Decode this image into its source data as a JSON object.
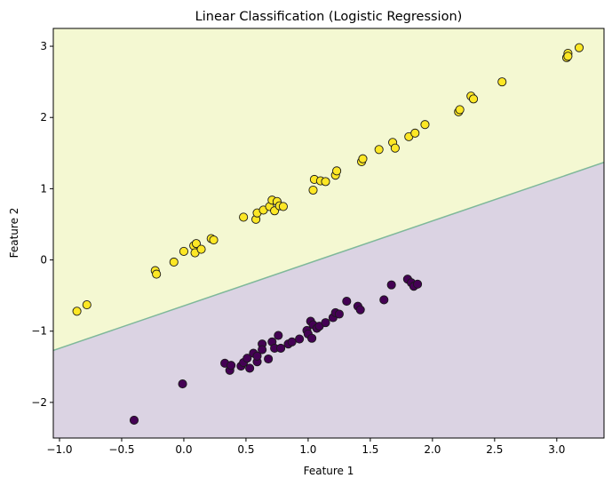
{
  "chart_data": {
    "type": "scatter",
    "title": "Linear Classification (Logistic Regression)",
    "xlabel": "Feature 1",
    "ylabel": "Feature 2",
    "xlim": [
      -1.05,
      3.38
    ],
    "ylim": [
      -2.5,
      3.25
    ],
    "x_ticks": [
      -1.0,
      -0.5,
      0.0,
      0.5,
      1.0,
      1.5,
      2.0,
      2.5,
      3.0
    ],
    "x_tick_labels": [
      "−1.0",
      "−0.5",
      "0.0",
      "0.5",
      "1.0",
      "1.5",
      "2.0",
      "2.5",
      "3.0"
    ],
    "y_ticks": [
      -2,
      -1,
      0,
      1,
      2,
      3
    ],
    "y_tick_labels": [
      "−2",
      "−1",
      "0",
      "1",
      "2",
      "3"
    ],
    "grid": false,
    "legend": "none",
    "decision_boundary": {
      "x": [
        -1.05,
        3.38
      ],
      "y": [
        -1.27,
        1.37
      ]
    },
    "regions": {
      "above_color": "#f4f8d2",
      "below_color": "#dbd3e3",
      "boundary_color": "#7fb89a"
    },
    "series": [
      {
        "color": "#440154",
        "points": [
          [
            -0.4,
            -2.25
          ],
          [
            -0.01,
            -1.74
          ],
          [
            0.33,
            -1.45
          ],
          [
            0.37,
            -1.55
          ],
          [
            0.38,
            -1.48
          ],
          [
            0.46,
            -1.49
          ],
          [
            0.48,
            -1.44
          ],
          [
            0.51,
            -1.38
          ],
          [
            0.53,
            -1.52
          ],
          [
            0.56,
            -1.31
          ],
          [
            0.59,
            -1.43
          ],
          [
            0.59,
            -1.35
          ],
          [
            0.63,
            -1.18
          ],
          [
            0.63,
            -1.26
          ],
          [
            0.68,
            -1.39
          ],
          [
            0.71,
            -1.15
          ],
          [
            0.73,
            -1.24
          ],
          [
            0.76,
            -1.06
          ],
          [
            0.78,
            -1.24
          ],
          [
            0.84,
            -1.18
          ],
          [
            0.87,
            -1.15
          ],
          [
            0.93,
            -1.11
          ],
          [
            0.99,
            -0.99
          ],
          [
            1.0,
            -1.04
          ],
          [
            1.02,
            -0.86
          ],
          [
            1.03,
            -1.1
          ],
          [
            1.04,
            -0.91
          ],
          [
            1.07,
            -0.96
          ],
          [
            1.09,
            -0.93
          ],
          [
            1.14,
            -0.88
          ],
          [
            1.2,
            -0.81
          ],
          [
            1.22,
            -0.74
          ],
          [
            1.25,
            -0.76
          ],
          [
            1.31,
            -0.58
          ],
          [
            1.4,
            -0.65
          ],
          [
            1.42,
            -0.7
          ],
          [
            1.61,
            -0.56
          ],
          [
            1.67,
            -0.35
          ],
          [
            1.8,
            -0.27
          ],
          [
            1.83,
            -0.32
          ],
          [
            1.85,
            -0.37
          ],
          [
            1.88,
            -0.34
          ]
        ]
      },
      {
        "color": "#fde725",
        "points": [
          [
            -0.86,
            -0.72
          ],
          [
            -0.78,
            -0.63
          ],
          [
            -0.23,
            -0.15
          ],
          [
            -0.22,
            -0.2
          ],
          [
            -0.08,
            -0.03
          ],
          [
            0.0,
            0.12
          ],
          [
            0.08,
            0.2
          ],
          [
            0.09,
            0.1
          ],
          [
            0.1,
            0.23
          ],
          [
            0.14,
            0.15
          ],
          [
            0.22,
            0.3
          ],
          [
            0.24,
            0.28
          ],
          [
            0.48,
            0.6
          ],
          [
            0.58,
            0.57
          ],
          [
            0.59,
            0.66
          ],
          [
            0.64,
            0.7
          ],
          [
            0.69,
            0.75
          ],
          [
            0.71,
            0.84
          ],
          [
            0.73,
            0.69
          ],
          [
            0.75,
            0.82
          ],
          [
            0.77,
            0.76
          ],
          [
            0.8,
            0.75
          ],
          [
            1.04,
            0.98
          ],
          [
            1.05,
            1.13
          ],
          [
            1.1,
            1.11
          ],
          [
            1.14,
            1.1
          ],
          [
            1.22,
            1.19
          ],
          [
            1.23,
            1.25
          ],
          [
            1.43,
            1.38
          ],
          [
            1.44,
            1.42
          ],
          [
            1.57,
            1.55
          ],
          [
            1.68,
            1.65
          ],
          [
            1.7,
            1.57
          ],
          [
            1.81,
            1.73
          ],
          [
            1.86,
            1.78
          ],
          [
            1.94,
            1.9
          ],
          [
            2.21,
            2.08
          ],
          [
            2.22,
            2.11
          ],
          [
            2.31,
            2.3
          ],
          [
            2.33,
            2.26
          ],
          [
            2.56,
            2.5
          ],
          [
            3.08,
            2.84
          ],
          [
            3.09,
            2.9
          ],
          [
            3.09,
            2.86
          ],
          [
            3.18,
            2.98
          ]
        ]
      }
    ]
  }
}
